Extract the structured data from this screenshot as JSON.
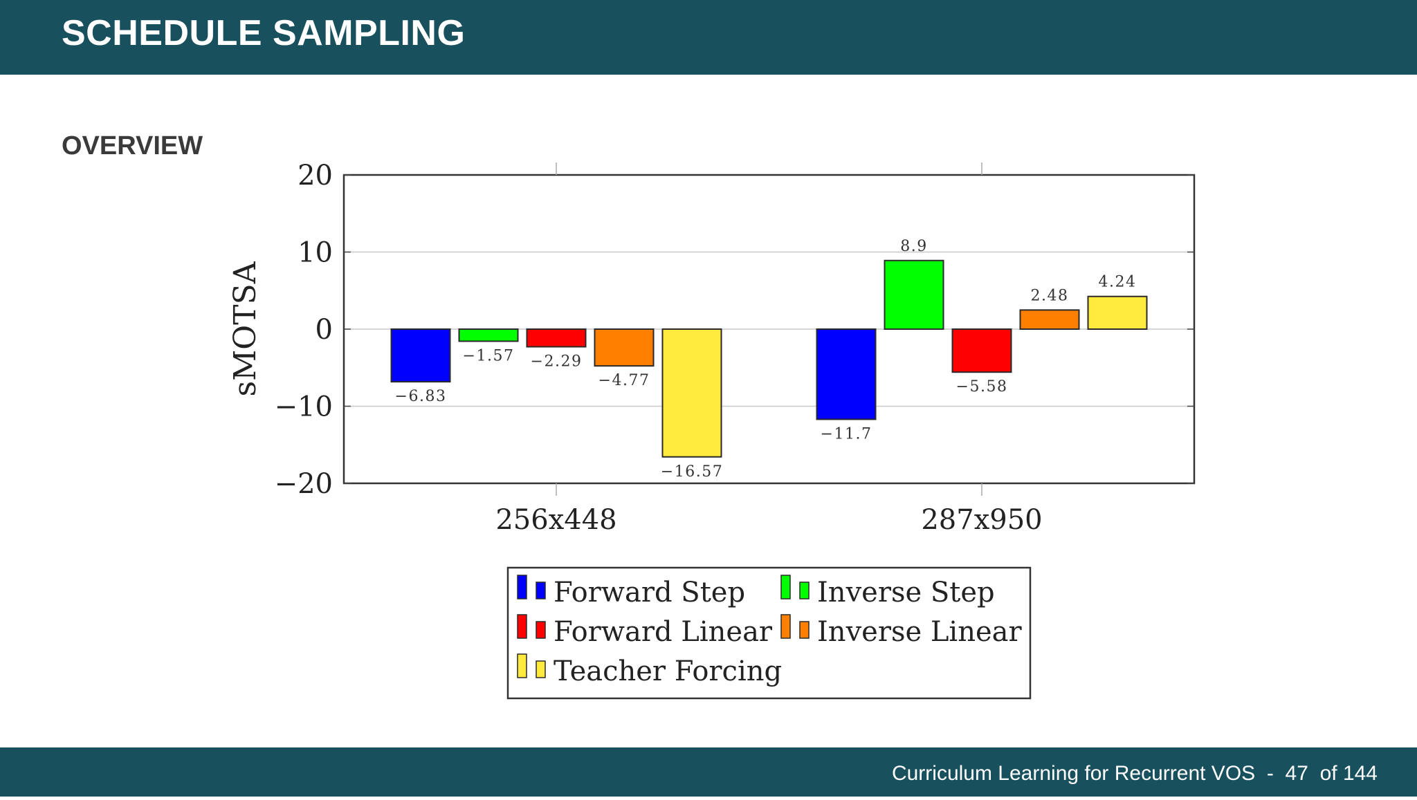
{
  "slide": {
    "title": "SCHEDULE SAMPLING",
    "subtitle": "OVERVIEW"
  },
  "footer": {
    "text": "Curriculum Learning for Recurrent VOS",
    "separator": "-",
    "page": "47",
    "of_label": "of",
    "total": "144"
  },
  "chart_data": {
    "type": "bar",
    "categories": [
      "256x448",
      "287x950"
    ],
    "ylabel": "sMOTSA",
    "ylim": [
      -20,
      20
    ],
    "yticks": [
      20,
      10,
      0,
      -10,
      -20
    ],
    "ytick_labels": [
      "20",
      "10",
      "0",
      "−10",
      "−20"
    ],
    "grid": true,
    "legend_placement": "bottom-center",
    "series": [
      {
        "name": "Forward Step",
        "color": "#0000ff",
        "values": [
          -6.83,
          -11.7
        ],
        "labels": [
          "−6.83",
          "−11.7"
        ]
      },
      {
        "name": "Inverse Step",
        "color": "#00ff00",
        "values": [
          -1.57,
          8.9
        ],
        "labels": [
          "−1.57",
          "8.9"
        ]
      },
      {
        "name": "Forward Linear",
        "color": "#ff0000",
        "values": [
          -2.29,
          -5.58
        ],
        "labels": [
          "−2.29",
          "−5.58"
        ]
      },
      {
        "name": "Inverse Linear",
        "color": "#ff8000",
        "values": [
          -4.77,
          2.48
        ],
        "labels": [
          "−4.77",
          "2.48"
        ]
      },
      {
        "name": "Teacher Forcing",
        "color": "#ffea3d",
        "values": [
          -16.57,
          4.24
        ],
        "labels": [
          "−16.57",
          "4.24"
        ]
      }
    ]
  }
}
